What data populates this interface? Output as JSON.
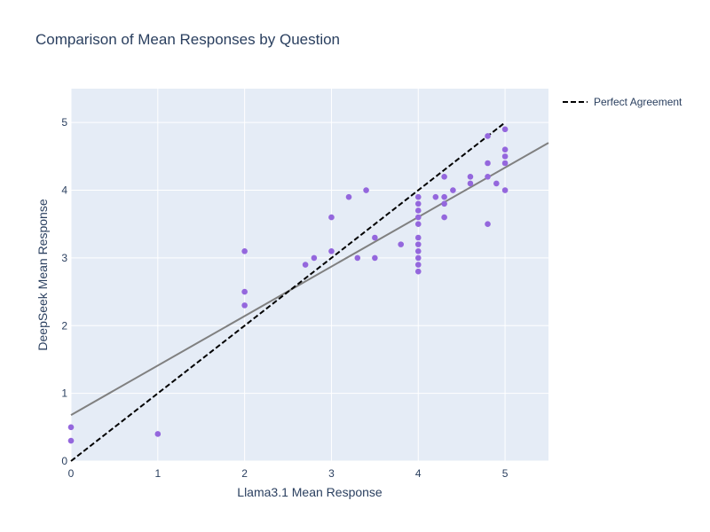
{
  "chart_data": {
    "type": "scatter",
    "title": "Comparison of Mean Responses by Question",
    "xlabel": "Llama3.1 Mean Response",
    "ylabel": "DeepSeek Mean Response",
    "xlim": [
      0,
      5.5
    ],
    "ylim": [
      0,
      5.5
    ],
    "xticks": [
      "0",
      "1",
      "2",
      "3",
      "4",
      "5"
    ],
    "yticks": [
      "0",
      "1",
      "2",
      "3",
      "4",
      "5"
    ],
    "grid": true,
    "legend_position": "top-right",
    "colors": {
      "plot_bg": "#e5ecf6",
      "points": "#9467dd",
      "trend_line": "#808080",
      "agreement_line": "#000000",
      "text": "#2a3f5f"
    },
    "points": [
      [
        0,
        0.5
      ],
      [
        0,
        0.3
      ],
      [
        1,
        0.4
      ],
      [
        2,
        3.1
      ],
      [
        2,
        2.5
      ],
      [
        2,
        2.3
      ],
      [
        2.7,
        2.9
      ],
      [
        2.8,
        3.0
      ],
      [
        3.0,
        3.6
      ],
      [
        3.0,
        3.1
      ],
      [
        3.2,
        3.9
      ],
      [
        3.3,
        3.0
      ],
      [
        3.4,
        4.0
      ],
      [
        3.5,
        3.3
      ],
      [
        3.5,
        3.0
      ],
      [
        3.8,
        3.2
      ],
      [
        4.0,
        3.9
      ],
      [
        4.0,
        3.8
      ],
      [
        4.0,
        3.7
      ],
      [
        4.0,
        3.6
      ],
      [
        4.0,
        3.5
      ],
      [
        4.0,
        3.3
      ],
      [
        4.0,
        3.2
      ],
      [
        4.0,
        3.1
      ],
      [
        4.0,
        3.0
      ],
      [
        4.0,
        2.9
      ],
      [
        4.0,
        2.8
      ],
      [
        4.2,
        3.9
      ],
      [
        4.3,
        4.2
      ],
      [
        4.3,
        3.9
      ],
      [
        4.3,
        3.8
      ],
      [
        4.3,
        3.6
      ],
      [
        4.4,
        4.0
      ],
      [
        4.6,
        4.2
      ],
      [
        4.6,
        4.1
      ],
      [
        4.8,
        4.8
      ],
      [
        4.8,
        4.4
      ],
      [
        4.8,
        4.2
      ],
      [
        4.8,
        3.5
      ],
      [
        4.9,
        4.1
      ],
      [
        5.0,
        4.9
      ],
      [
        5.0,
        4.6
      ],
      [
        5.0,
        4.5
      ],
      [
        5.0,
        4.4
      ],
      [
        5.0,
        4.0
      ]
    ],
    "trend_line": {
      "x": [
        0,
        5.5
      ],
      "y": [
        0.68,
        4.7
      ]
    },
    "agreement_line": {
      "name": "Perfect Agreement",
      "x": [
        0,
        5
      ],
      "y": [
        0,
        5
      ]
    }
  }
}
